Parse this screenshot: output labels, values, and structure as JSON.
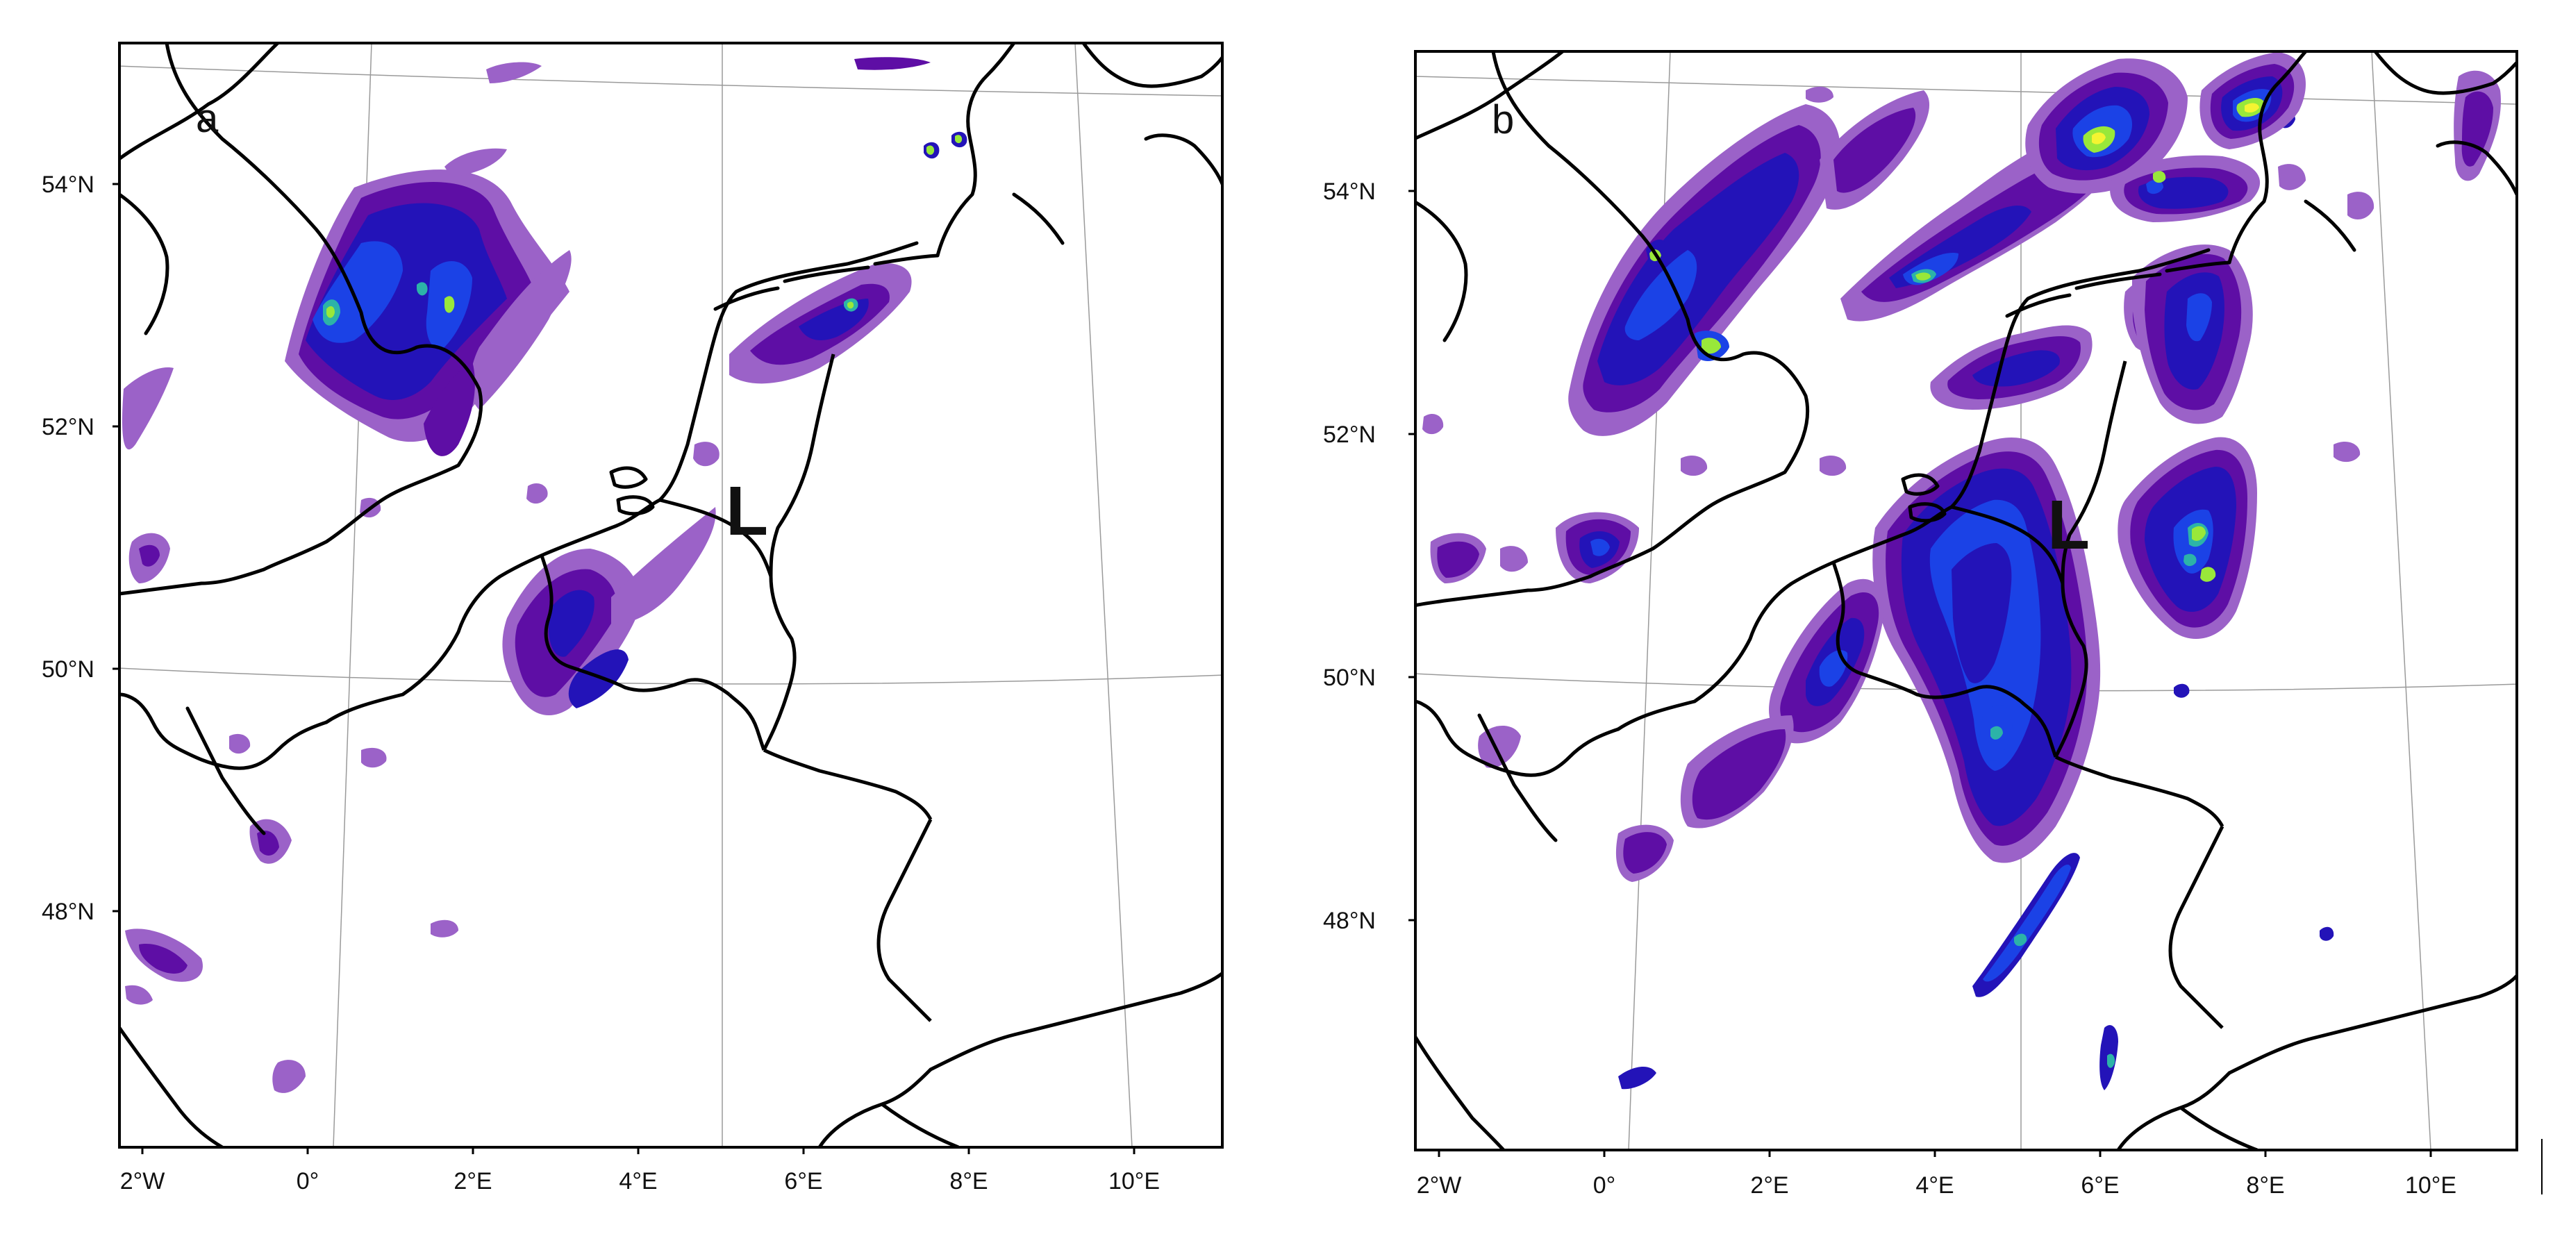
{
  "colors": {
    "level1": "#9b62c8",
    "level2": "#5e0ea5",
    "level3": "#2313b8",
    "level4": "#1b42e6",
    "level5": "#2cb3a8",
    "level6": "#99e83a",
    "level7": "#f4f431",
    "coastline": "#000000",
    "graticule": "#9a9a9a"
  },
  "panels": [
    {
      "letter": "a",
      "low_marker": "L",
      "lon_ticks": [
        "2°W",
        "0°",
        "2°E",
        "4°E",
        "6°E",
        "8°E",
        "10°E"
      ],
      "lat_ticks": [
        "54°N",
        "52°N",
        "50°N",
        "48°N"
      ]
    },
    {
      "letter": "b",
      "low_marker": "L",
      "lon_ticks": [
        "2°W",
        "0°",
        "2°E",
        "4°E",
        "6°E",
        "8°E",
        "10°E"
      ],
      "lat_ticks": [
        "54°N",
        "52°N",
        "50°N",
        "48°N"
      ]
    }
  ]
}
